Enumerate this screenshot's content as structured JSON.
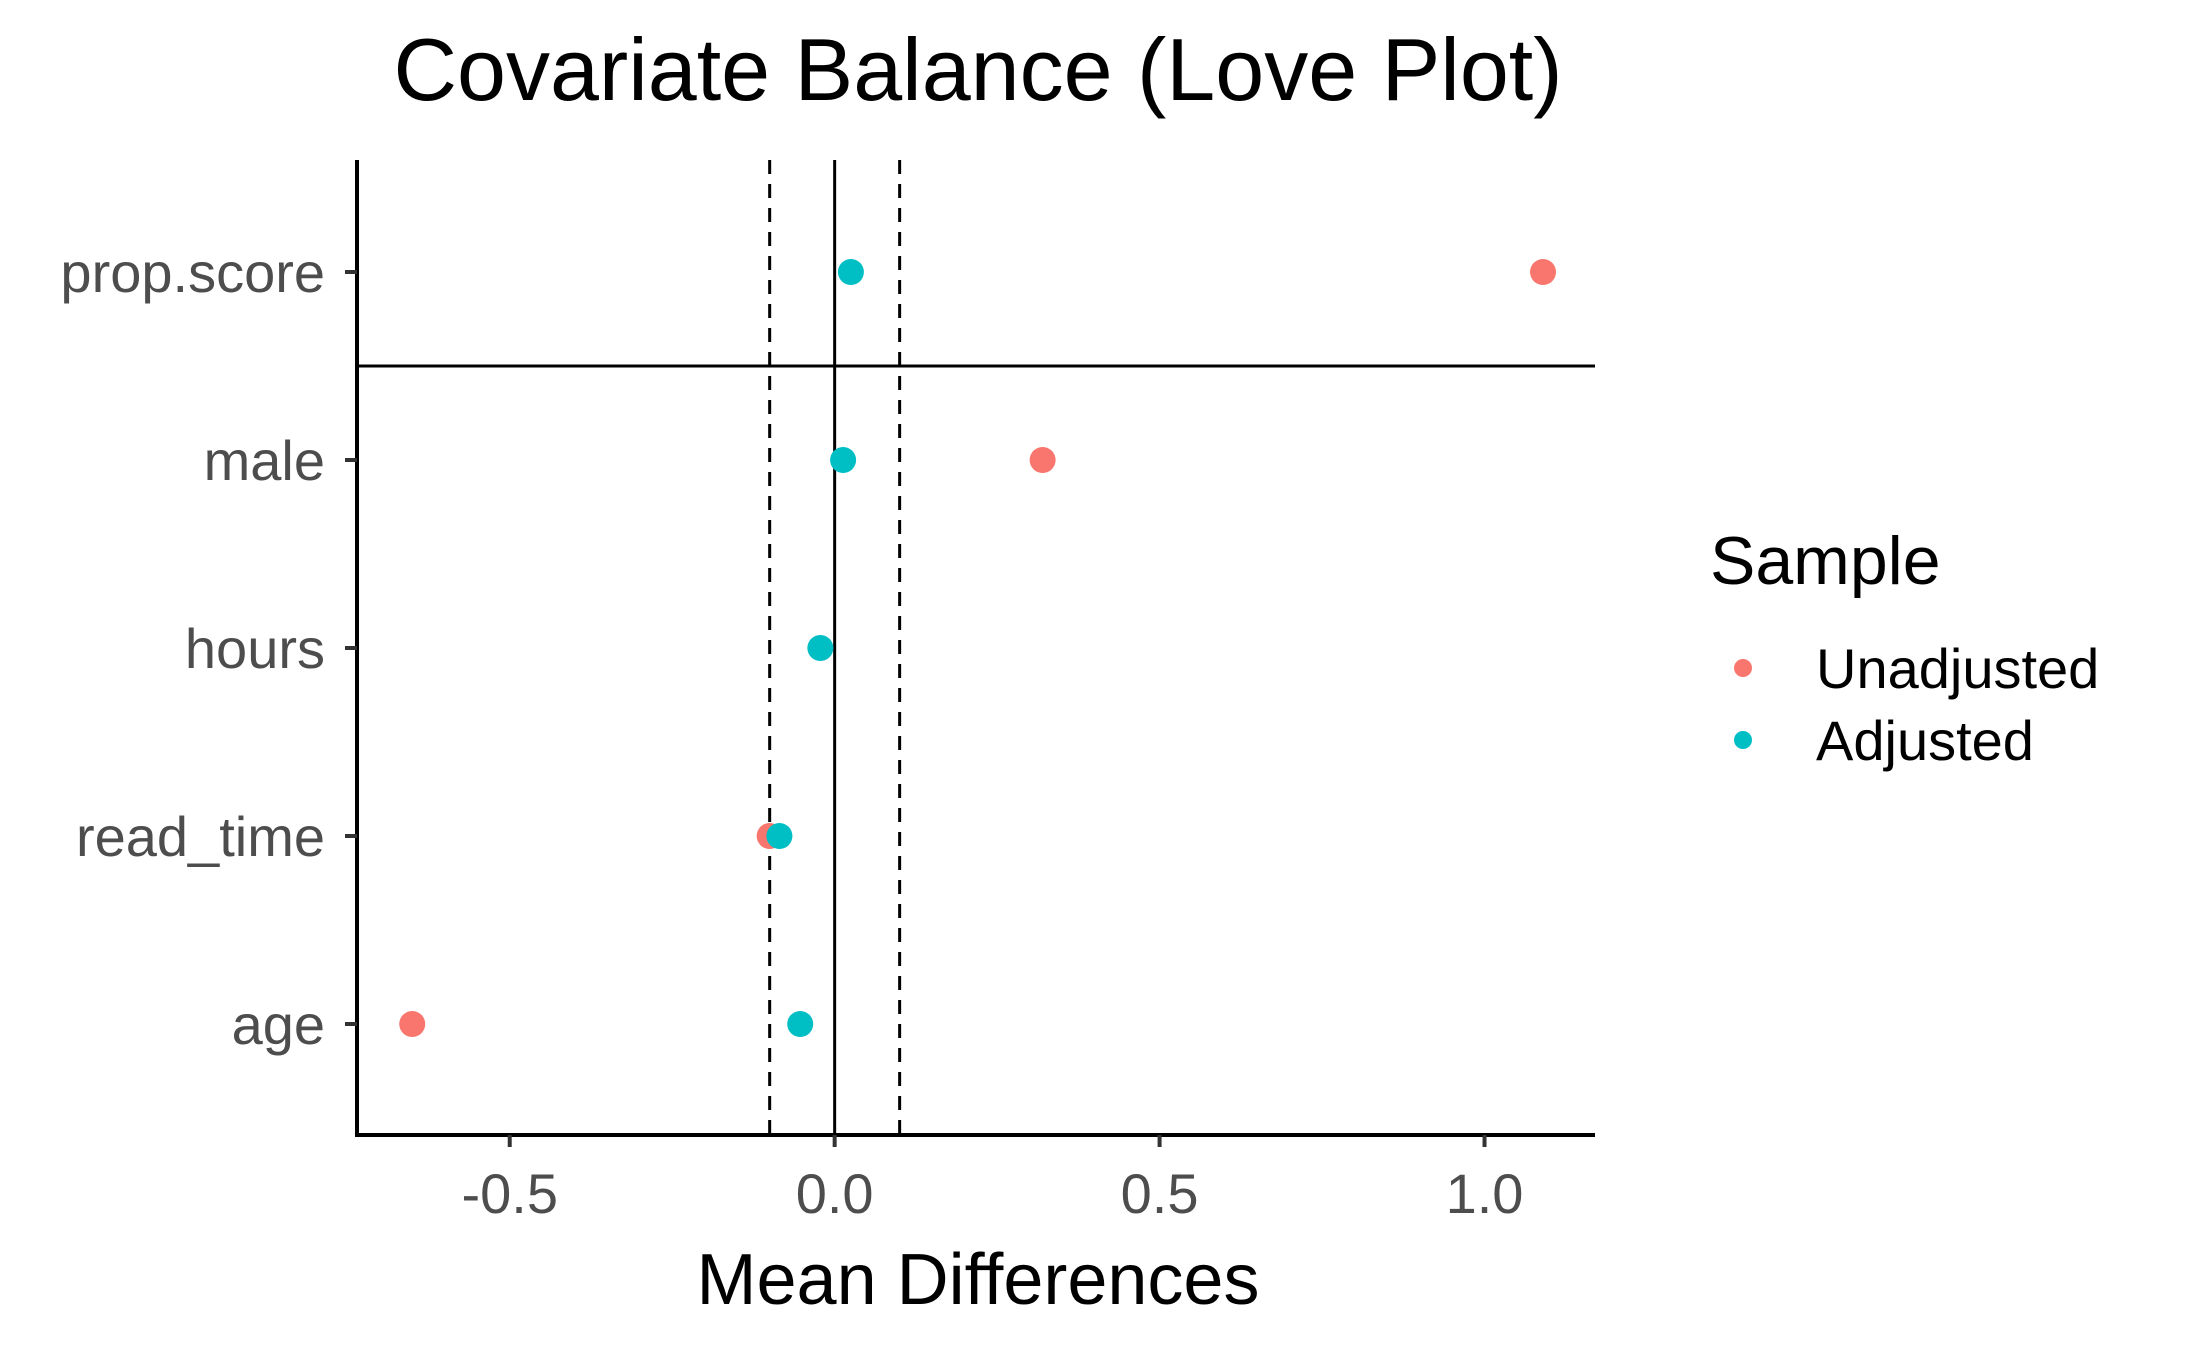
{
  "chart_data": {
    "type": "scatter",
    "title": "Covariate Balance (Love Plot)",
    "xlabel": "Mean Differences",
    "ylabel": "",
    "xlim": [
      -0.735,
      1.17
    ],
    "x_ticks": [
      -0.5,
      0.0,
      0.5,
      1.0
    ],
    "x_tick_labels": [
      "-0.5",
      "0.0",
      "0.5",
      "1.0"
    ],
    "categories": [
      "prop.score",
      "male",
      "hours",
      "read_time",
      "age"
    ],
    "reference_lines": [
      {
        "x": 0.0,
        "style": "solid"
      },
      {
        "x": -0.1,
        "style": "dashed"
      },
      {
        "x": 0.1,
        "style": "dashed"
      }
    ],
    "separator_between": [
      "prop.score",
      "male"
    ],
    "grid": false,
    "legend": {
      "title": "Sample",
      "position": "right"
    },
    "series": [
      {
        "name": "Unadjusted",
        "color": "#F8766D",
        "points": [
          {
            "category": "prop.score",
            "x": 1.09
          },
          {
            "category": "male",
            "x": 0.32
          },
          {
            "category": "read_time",
            "x": -0.1
          },
          {
            "category": "age",
            "x": -0.65
          }
        ]
      },
      {
        "name": "Adjusted",
        "color": "#00BFC4",
        "points": [
          {
            "category": "prop.score",
            "x": 0.025
          },
          {
            "category": "male",
            "x": 0.013
          },
          {
            "category": "hours",
            "x": -0.022
          },
          {
            "category": "read_time",
            "x": -0.085
          },
          {
            "category": "age",
            "x": -0.053
          }
        ]
      }
    ]
  }
}
